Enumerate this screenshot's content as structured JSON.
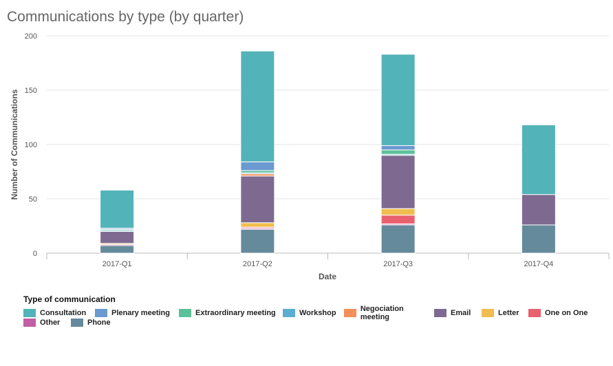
{
  "chart_data": {
    "type": "bar",
    "stacked": true,
    "title": "Communications by type (by quarter)",
    "xlabel": "Date",
    "ylabel": "Number of Communications",
    "ylim": [
      0,
      200
    ],
    "yticks": [
      0,
      50,
      100,
      150,
      200
    ],
    "grid": true,
    "legend_title": "Type of communication",
    "legend_position": "bottom-left",
    "categories": [
      "2017-Q1",
      "2017-Q2",
      "2017-Q3",
      "2017-Q4"
    ],
    "series": [
      {
        "name": "Phone",
        "color": "#658a9b",
        "values": [
          7,
          22,
          26,
          26
        ]
      },
      {
        "name": "Other",
        "color": "#c25fa4",
        "values": [
          1,
          1,
          1,
          0
        ]
      },
      {
        "name": "One on One",
        "color": "#e9606e",
        "values": [
          0,
          1,
          8,
          0
        ]
      },
      {
        "name": "Letter",
        "color": "#f0bd4e",
        "values": [
          1,
          4,
          6,
          0
        ]
      },
      {
        "name": "Email",
        "color": "#7e6a90",
        "values": [
          11,
          43,
          49,
          28
        ]
      },
      {
        "name": "Negociation meeting",
        "color": "#f48f5a",
        "values": [
          0,
          2,
          0,
          0
        ]
      },
      {
        "name": "Workshop",
        "color": "#5aaed1",
        "values": [
          1,
          1,
          1,
          0
        ]
      },
      {
        "name": "Extraordinary meeting",
        "color": "#5cc199",
        "values": [
          1,
          2,
          4,
          0
        ]
      },
      {
        "name": "Plenary meeting",
        "color": "#6a9ad0",
        "values": [
          1,
          8,
          4,
          0
        ]
      },
      {
        "name": "Consultation",
        "color": "#52b3b8",
        "values": [
          35,
          102,
          84,
          64
        ]
      }
    ],
    "legend_order": [
      "Consultation",
      "Plenary meeting",
      "Extraordinary meeting",
      "Workshop",
      "Negociation meeting",
      "Email",
      "Letter",
      "One on One",
      "Other",
      "Phone"
    ]
  }
}
